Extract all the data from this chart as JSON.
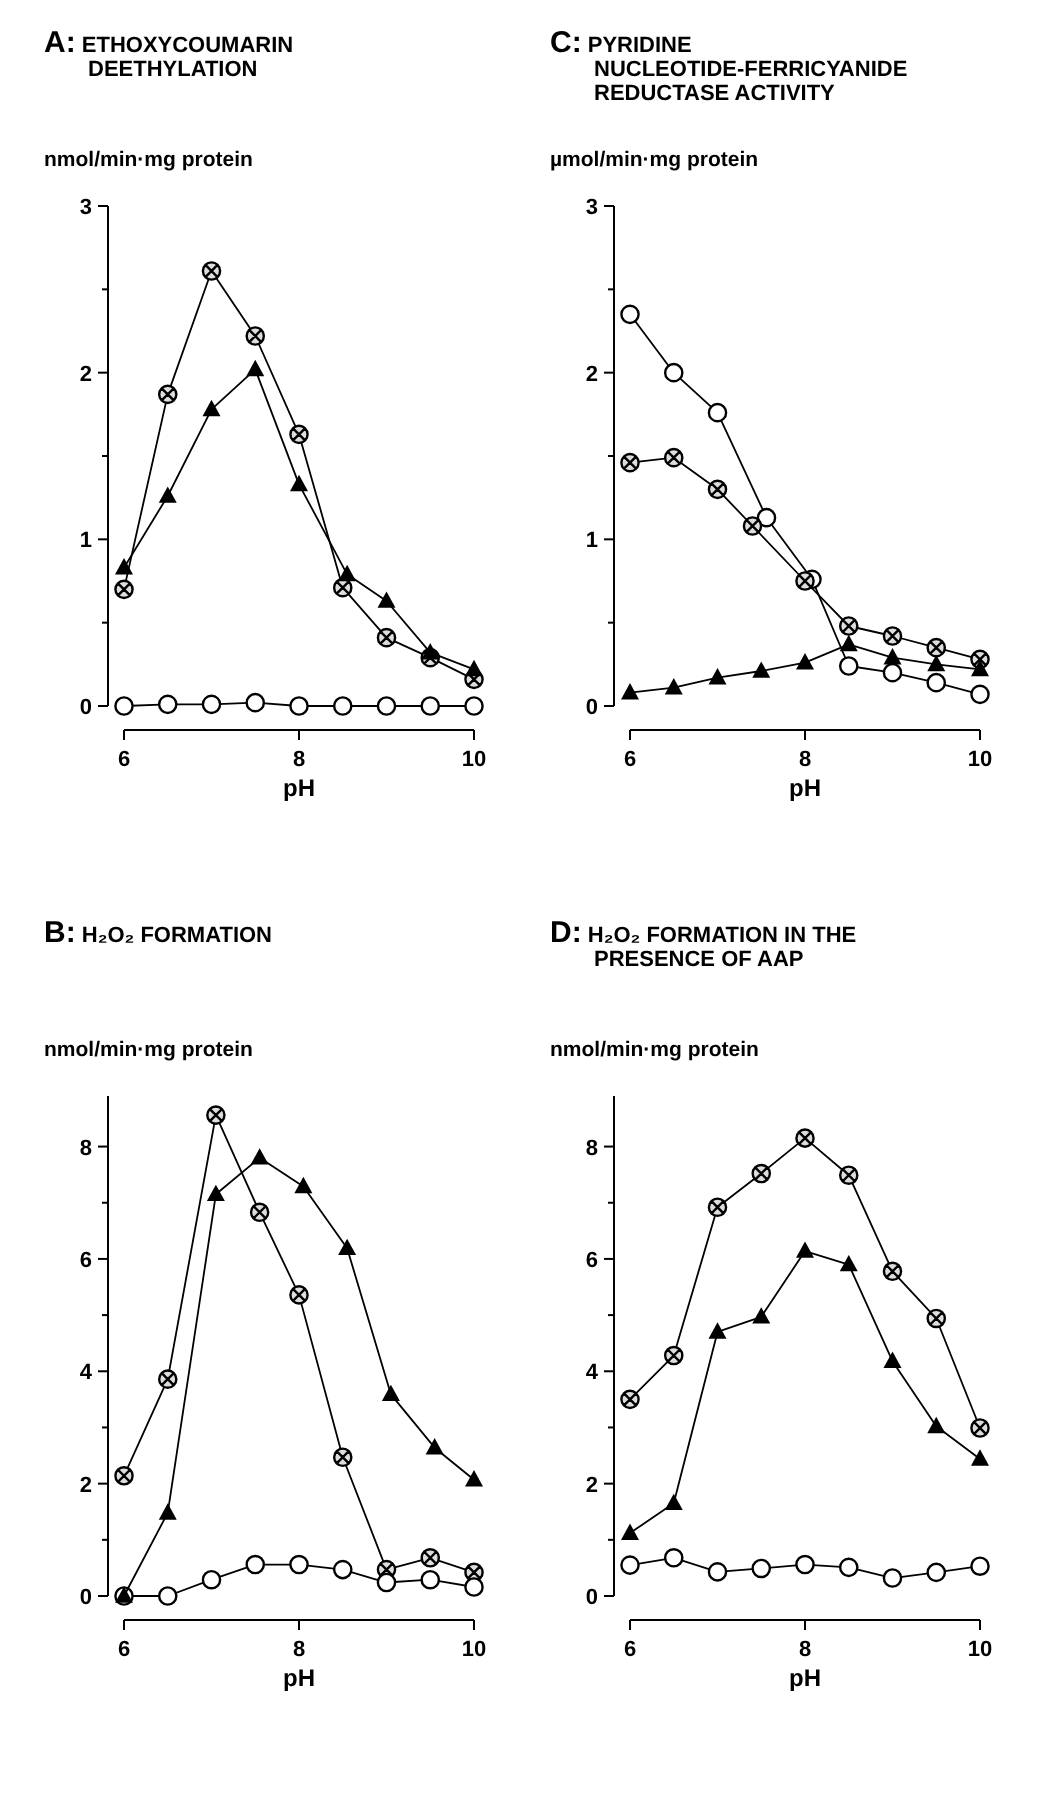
{
  "chart_data": [
    {
      "type": "line",
      "title": "A: ETHOXYCOUMARIN DEETHYLATION",
      "xlabel": "pH",
      "ylabel": "nmol/min·mg protein",
      "xlim": [
        6,
        10
      ],
      "xticks": [
        6,
        8,
        10
      ],
      "ylim": [
        0,
        3
      ],
      "yticks": [
        0,
        {
          "value": 0.5,
          "label": null
        },
        1,
        {
          "value": 1.5,
          "label": null
        },
        2,
        {
          "value": 2.5,
          "label": null
        },
        3
      ],
      "x": [
        6,
        6.5,
        7,
        7.5,
        8,
        8.5,
        9,
        9.5,
        10
      ],
      "series": [
        {
          "color": "#000000",
          "marker": "cross",
          "values": [
            0.7,
            1.87,
            2.61,
            2.22,
            1.63,
            0.71,
            0.41,
            0.29,
            0.16
          ]
        },
        {
          "color": "#000000",
          "marker": "triangle",
          "x": [
            6,
            6.5,
            7,
            7.5,
            8,
            8.55,
            9,
            9.5,
            10
          ],
          "values": [
            0.83,
            1.26,
            1.78,
            2.02,
            1.33,
            0.79,
            0.63,
            0.32,
            0.22
          ]
        },
        {
          "color": "#000000",
          "marker": "circle",
          "values": [
            0,
            0.01,
            0.01,
            0.02,
            0,
            0,
            0,
            0,
            0
          ]
        }
      ]
    },
    {
      "type": "line",
      "title": "C: PYRIDINE NUCLEOTIDE-FERRICYANIDE REDUCTASE ACTIVITY",
      "xlabel": "pH",
      "ylabel": "µmol/min·mg protein",
      "xlim": [
        6,
        10
      ],
      "xticks": [
        6,
        8,
        10
      ],
      "ylim": [
        0,
        3
      ],
      "yticks": [
        0,
        {
          "value": 0.5,
          "label": null
        },
        1,
        {
          "value": 1.5,
          "label": null
        },
        2,
        {
          "value": 2.5,
          "label": null
        },
        3
      ],
      "x": [
        6,
        6.5,
        7,
        7.5,
        8,
        8.5,
        9,
        9.5,
        10
      ],
      "series": [
        {
          "color": "#000000",
          "marker": "circle",
          "x": [
            6,
            6.5,
            7,
            7.56,
            8.08,
            8.5,
            9,
            9.5,
            10
          ],
          "values": [
            2.35,
            2.0,
            1.76,
            1.13,
            0.76,
            0.24,
            0.2,
            0.14,
            0.07
          ]
        },
        {
          "color": "#000000",
          "marker": "cross",
          "x": [
            6,
            6.5,
            7,
            7.4,
            8,
            8.5,
            9,
            9.5,
            10
          ],
          "values": [
            1.46,
            1.49,
            1.3,
            1.08,
            0.75,
            0.48,
            0.42,
            0.35,
            0.28
          ]
        },
        {
          "color": "#000000",
          "marker": "triangle",
          "values": [
            0.08,
            0.11,
            0.17,
            0.21,
            0.26,
            0.37,
            0.29,
            0.25,
            0.22
          ]
        }
      ]
    },
    {
      "type": "line",
      "title": "B: H₂O₂ FORMATION",
      "xlabel": "pH",
      "ylabel": "nmol/min·mg protein",
      "xlim": [
        6,
        10
      ],
      "xticks": [
        6,
        8,
        10
      ],
      "ylim": [
        0,
        8.9
      ],
      "yticks": [
        0,
        {
          "value": 1,
          "label": null
        },
        2,
        {
          "value": 3,
          "label": null
        },
        4,
        {
          "value": 5,
          "label": null
        },
        6,
        {
          "value": 7,
          "label": null
        },
        8
      ],
      "x": [
        6,
        6.5,
        7,
        7.5,
        8,
        8.5,
        9,
        9.5,
        10
      ],
      "series": [
        {
          "color": "#000000",
          "marker": "cross",
          "x": [
            6,
            6.5,
            7.05,
            7.55,
            8,
            8.5,
            9,
            9.5,
            10
          ],
          "values": [
            2.14,
            3.86,
            8.56,
            6.83,
            5.36,
            2.47,
            0.47,
            0.68,
            0.42
          ]
        },
        {
          "color": "#000000",
          "marker": "circle",
          "values": [
            0,
            0,
            0.29,
            0.56,
            0.56,
            0.47,
            0.24,
            0.29,
            0.16
          ]
        },
        {
          "color": "#000000",
          "marker": "triangle",
          "x": [
            6,
            6.5,
            7.05,
            7.55,
            8.05,
            8.55,
            9.05,
            9.55,
            10
          ],
          "values": [
            0,
            1.48,
            7.15,
            7.8,
            7.29,
            6.19,
            3.59,
            2.64,
            2.07
          ]
        }
      ]
    },
    {
      "type": "line",
      "title": "D: H₂O₂ FORMATION IN THE PRESENCE OF AAP",
      "xlabel": "pH",
      "ylabel": "nmol/min·mg protein",
      "xlim": [
        6,
        10
      ],
      "xticks": [
        6,
        8,
        10
      ],
      "ylim": [
        0,
        8.9
      ],
      "yticks": [
        0,
        {
          "value": 1,
          "label": null
        },
        2,
        {
          "value": 3,
          "label": null
        },
        4,
        {
          "value": 5,
          "label": null
        },
        6,
        {
          "value": 7,
          "label": null
        },
        8
      ],
      "x": [
        6,
        6.5,
        7,
        7.5,
        8,
        8.5,
        9,
        9.5,
        10
      ],
      "series": [
        {
          "color": "#000000",
          "marker": "cross",
          "values": [
            3.5,
            4.28,
            6.92,
            7.52,
            8.15,
            7.49,
            5.78,
            4.94,
            2.99
          ]
        },
        {
          "color": "#000000",
          "marker": "triangle",
          "values": [
            1.12,
            1.65,
            4.7,
            4.97,
            6.14,
            5.9,
            4.18,
            3.02,
            2.44
          ]
        },
        {
          "color": "#000000",
          "marker": "circle",
          "values": [
            0.55,
            0.68,
            0.43,
            0.49,
            0.56,
            0.51,
            0.32,
            0.42,
            0.53
          ]
        }
      ]
    }
  ]
}
